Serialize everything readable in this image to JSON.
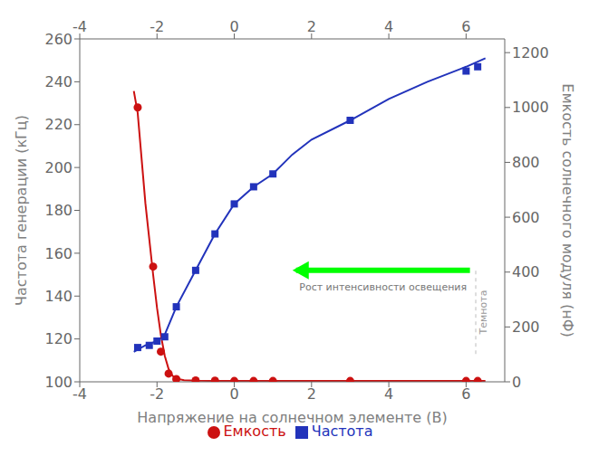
{
  "chart_data": {
    "type": "line",
    "xlabel": "Напряжение на солнечном элементе (В)",
    "ylabel": "Частота генерации (кГц)",
    "y2label": "Емкость солнечного модуля (нФ)",
    "xlim": [
      -4,
      7
    ],
    "xticks": [
      -4,
      -2,
      0,
      2,
      4,
      6
    ],
    "ylim": [
      100,
      260
    ],
    "yticks": [
      100,
      120,
      140,
      160,
      180,
      200,
      220,
      240,
      260
    ],
    "y2lim": [
      0,
      1250
    ],
    "y2ticks": [
      0,
      200,
      400,
      600,
      800,
      1000,
      1200
    ],
    "grid": false,
    "legend": "bottom",
    "series": [
      {
        "name": "Частота",
        "axis": "y",
        "color": "#2233bb",
        "marker": "square",
        "x": [
          -2.6,
          -2.5,
          -2.3,
          -2.0,
          -1.8,
          -1.5,
          -1.0,
          -0.5,
          0.0,
          0.5,
          1.0,
          1.5,
          2.0,
          3.0,
          4.0,
          5.0,
          6.0,
          6.5
        ],
        "values": [
          114,
          115,
          117,
          119,
          122,
          135,
          152,
          169,
          183,
          191,
          197,
          206,
          213,
          222,
          232,
          240,
          247,
          251
        ],
        "points_x": [
          -2.5,
          -2.2,
          -2.0,
          -1.8,
          -1.5,
          -1.0,
          -0.5,
          0.0,
          0.5,
          1.0,
          3.0,
          6.0,
          6.3
        ],
        "points_values": [
          116,
          117,
          119,
          121,
          135,
          152,
          169,
          183,
          191,
          197,
          222,
          245,
          247
        ]
      },
      {
        "name": "Емкость",
        "axis": "y2",
        "color": "#cc1111",
        "marker": "circle",
        "x": [
          -2.6,
          -2.5,
          -2.3,
          -2.1,
          -2.0,
          -1.9,
          -1.8,
          -1.7,
          -1.6,
          -1.5,
          -1.3,
          -1.0,
          -0.5,
          0.0,
          1.0,
          3.0,
          6.5
        ],
        "values": [
          1060,
          980,
          650,
          390,
          270,
          170,
          95,
          47,
          22,
          12,
          6,
          4,
          3,
          3,
          3,
          3,
          3
        ],
        "points_x": [
          -2.5,
          -2.1,
          -1.9,
          -1.7,
          -1.5,
          -1.0,
          -0.5,
          0.0,
          0.5,
          1.0,
          3.0,
          6.0,
          6.3
        ],
        "points_values": [
          1000,
          420,
          110,
          30,
          10,
          5,
          4,
          3,
          3,
          3,
          3,
          3,
          3
        ]
      }
    ],
    "annotations": [
      {
        "type": "arrow",
        "text": "Рост интенсивности освещения",
        "x_start": 6.1,
        "x_end": 1.6,
        "y": 152,
        "text_x": 3.85,
        "text_y": 147,
        "color": "lime"
      },
      {
        "type": "vline",
        "text": "Темнота",
        "x": 6.25,
        "y_start": 113,
        "y_end": 152,
        "color": "lightgray"
      }
    ]
  }
}
